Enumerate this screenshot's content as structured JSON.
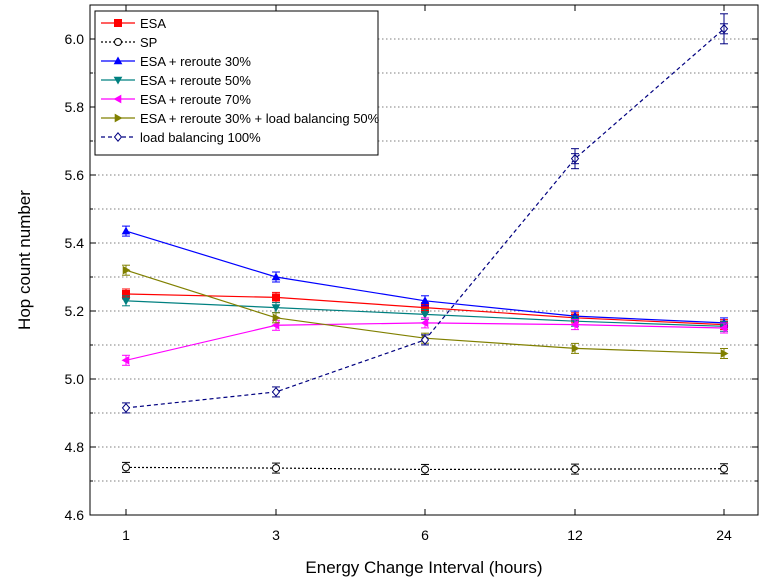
{
  "chart_data": {
    "type": "line",
    "xlabel": "Energy Change Interval (hours)",
    "ylabel": "Hop count number",
    "categories": [
      "1",
      "3",
      "6",
      "12",
      "24"
    ],
    "ylim": [
      4.6,
      6.1
    ],
    "yticks": [
      "4.6",
      "4.8",
      "5.0",
      "5.2",
      "5.4",
      "5.6",
      "5.8",
      "6.0"
    ],
    "ytick_values": [
      4.6,
      4.8,
      5.0,
      5.2,
      5.4,
      5.6,
      5.8,
      6.0
    ],
    "minor_grid": true,
    "legend_position": "top-left",
    "series": [
      {
        "name": "ESA",
        "values": [
          5.25,
          5.24,
          5.21,
          5.18,
          5.16
        ],
        "color": "#ff0000",
        "marker": "square",
        "filled": true,
        "dash": "solid"
      },
      {
        "name": "SP",
        "values": [
          4.74,
          4.738,
          4.734,
          4.735,
          4.736
        ],
        "color": "#000000",
        "marker": "circle",
        "filled": false,
        "dash": "dotted"
      },
      {
        "name": "ESA + reroute 30%",
        "values": [
          5.435,
          5.3,
          5.23,
          5.185,
          5.165
        ],
        "color": "#0000ff",
        "marker": "triangle-up",
        "filled": true,
        "dash": "solid"
      },
      {
        "name": "ESA + reroute 50%",
        "values": [
          5.23,
          5.21,
          5.19,
          5.17,
          5.155
        ],
        "color": "#008080",
        "marker": "triangle-down",
        "filled": true,
        "dash": "solid"
      },
      {
        "name": "ESA + reroute 70%",
        "values": [
          5.055,
          5.158,
          5.165,
          5.16,
          5.15
        ],
        "color": "#ff00ff",
        "marker": "triangle-left",
        "filled": true,
        "dash": "solid"
      },
      {
        "name": "ESA + reroute 30% + load balancing 50%",
        "values": [
          5.32,
          5.18,
          5.12,
          5.09,
          5.075
        ],
        "color": "#808000",
        "marker": "triangle-right",
        "filled": true,
        "dash": "solid"
      },
      {
        "name": "load balancing 100%",
        "values": [
          4.915,
          4.962,
          5.115,
          5.648,
          6.03
        ],
        "color": "#000080",
        "marker": "diamond",
        "filled": false,
        "dash": "dashed"
      }
    ]
  }
}
